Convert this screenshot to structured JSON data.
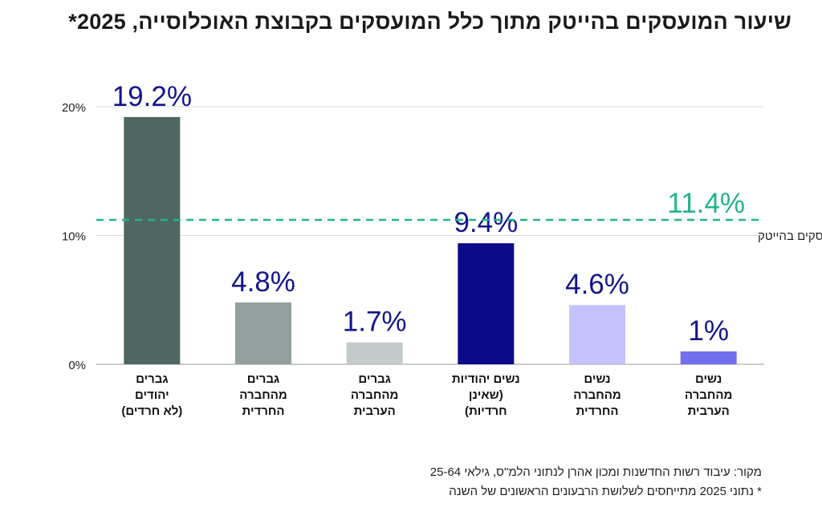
{
  "title": "שיעור המועסקים בהייטק מתוך כלל המועסקים בקבוצת האוכלוסייה, 2025*",
  "chart_data": {
    "type": "bar",
    "categories": [
      [
        "גברים",
        "יהודים",
        "(לא חרדים)"
      ],
      [
        "גברים",
        "מהחברה",
        "החרדית"
      ],
      [
        "גברים",
        "מהחברה",
        "הערבית"
      ],
      [
        "נשים יהודיות",
        "(שאינן",
        "חרדיות)"
      ],
      [
        "נשים",
        "מהחברה",
        "החרדית"
      ],
      [
        "נשים",
        "מהחברה",
        "הערבית"
      ]
    ],
    "values": [
      19.2,
      4.8,
      1.7,
      9.4,
      4.6,
      1
    ],
    "value_labels": [
      "19.2%",
      "4.8%",
      "1.7%",
      "9.4%",
      "4.6%",
      "1%"
    ],
    "bar_colors": [
      "#4f6763",
      "#93a09d",
      "#c3cbca",
      "#0a0a8a",
      "#c4c2ff",
      "#6f6ff0"
    ],
    "ylim": [
      0,
      20
    ],
    "yticks": [
      "0%",
      "10%",
      "20%"
    ],
    "ytick_values": [
      0,
      10,
      20
    ],
    "grid": true,
    "reference_line": {
      "value": 11.4,
      "value_label": "11.4%",
      "label": "כלל המועסקים בהייטק",
      "color": "#23b48c",
      "style": "dashed"
    },
    "value_label_color": "#14148a"
  },
  "footer": {
    "source": "מקור: עיבוד רשות החדשנות ומכון אהרן לנתוני הלמ\"ס, גילאי 25-64",
    "note": "* נתוני 2025 מתייחסים לשלושת הרבעונים הראשונים של השנה"
  }
}
